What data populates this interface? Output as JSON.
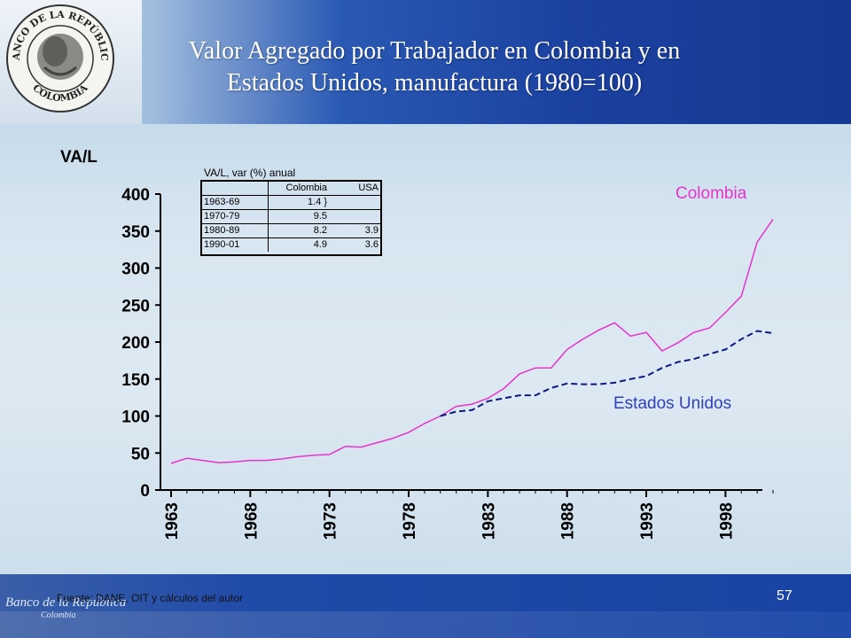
{
  "slide": {
    "title_line1": "Valor Agregado por Trabajador en Colombia y en",
    "title_line2": "Estados Unidos, manufactura (1980=100)",
    "seal_top_text": "BANCO DE LA REPÚBLICA",
    "seal_bottom_text": "COLOMBIA",
    "footer_logo": "Banco de la República",
    "footer_logo_sub": "Colombia",
    "source": "Fuente: DANE, OIT y cálculos del autor",
    "page_number": "57",
    "colors": {
      "header": "#1a3f9e",
      "colombia": "#e633cc",
      "usa": "#0a1a80"
    }
  },
  "chart_data": {
    "type": "line",
    "ylabel": "VA/L",
    "ylim": [
      0,
      400
    ],
    "yticks": [
      "0",
      "50",
      "100",
      "150",
      "200",
      "250",
      "300",
      "350",
      "400"
    ],
    "xlim": [
      1963,
      2001
    ],
    "xticks": [
      "1963",
      "1968",
      "1973",
      "1978",
      "1983",
      "1988",
      "1993",
      "1998"
    ],
    "grid": false,
    "series": [
      {
        "name": "Colombia",
        "style": "solid",
        "color": "#e633cc",
        "x": [
          1963,
          1964,
          1965,
          1966,
          1967,
          1968,
          1969,
          1970,
          1971,
          1972,
          1973,
          1974,
          1975,
          1976,
          1977,
          1978,
          1979,
          1980,
          1981,
          1982,
          1983,
          1984,
          1985,
          1986,
          1987,
          1988,
          1989,
          1990,
          1991,
          1992,
          1993,
          1994,
          1995,
          1996,
          1997,
          1998,
          1999,
          2000,
          2001
        ],
        "y": [
          36,
          43,
          40,
          37,
          38,
          40,
          40,
          42,
          45,
          47,
          48,
          59,
          58,
          64,
          70,
          78,
          90,
          100,
          113,
          116,
          124,
          137,
          157,
          165,
          165,
          190,
          204,
          216,
          226,
          208,
          213,
          188,
          199,
          213,
          219,
          240,
          262,
          335,
          366
        ]
      },
      {
        "name": "Estados Unidos",
        "style": "dashed",
        "color": "#0a1a80",
        "x": [
          1980,
          1981,
          1982,
          1983,
          1984,
          1985,
          1986,
          1987,
          1988,
          1989,
          1990,
          1991,
          1992,
          1993,
          1994,
          1995,
          1996,
          1997,
          1998,
          1999,
          2000,
          2001
        ],
        "y": [
          100,
          106,
          108,
          120,
          124,
          128,
          128,
          138,
          144,
          143,
          143,
          145,
          150,
          154,
          165,
          173,
          177,
          184,
          190,
          204,
          215,
          212
        ]
      }
    ],
    "annotations": {
      "colombia_label": "Colombia",
      "usa_label": "Estados Unidos"
    },
    "inset_table": {
      "title": "VA/L, var (%) anual",
      "headers": [
        "",
        "Colombia",
        "USA"
      ],
      "rows": [
        [
          "1963-69",
          "1.4 }",
          ""
        ],
        [
          "1970-79",
          "9.5",
          ""
        ],
        [
          "1980-89",
          "8.2",
          "3.9"
        ],
        [
          "1990-01",
          "4.9",
          "3.6"
        ]
      ]
    }
  }
}
